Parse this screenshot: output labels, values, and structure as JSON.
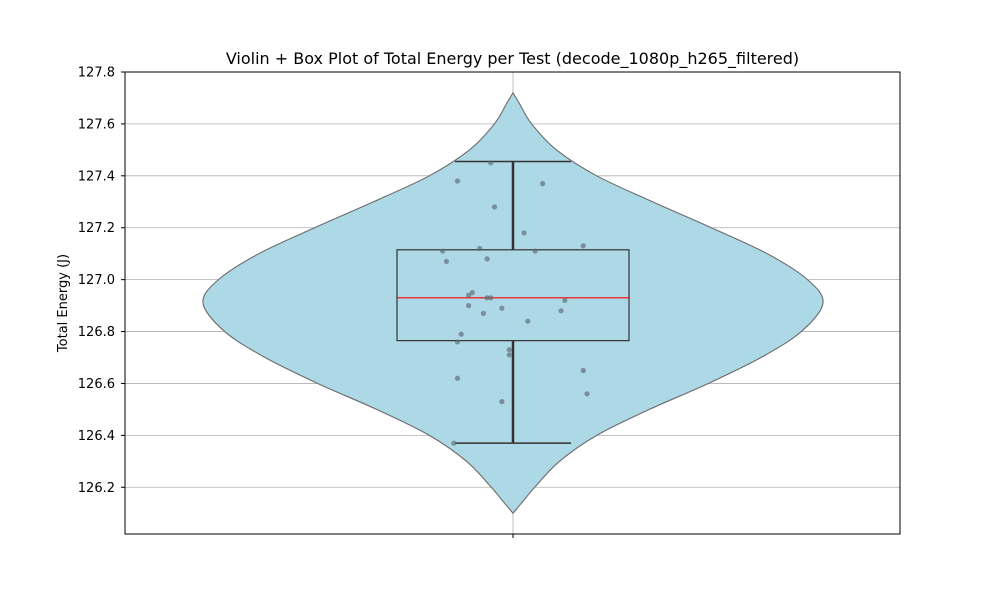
{
  "chart_data": {
    "type": "violin",
    "title": "Violin + Box Plot of Total Energy per Test (decode_1080p_h265_filtered)",
    "xlabel": "",
    "ylabel": "Total Energy (J)",
    "ylim": [
      126.02,
      127.8
    ],
    "yticks": [
      "126.2",
      "126.4",
      "126.6",
      "126.8",
      "127.0",
      "127.2",
      "127.4",
      "127.6",
      "127.8"
    ],
    "grid": true,
    "colors": {
      "violin_fill": "#add8e6",
      "violin_edge": "#6b6b6b",
      "box_edge": "#333333",
      "median": "#ff0000",
      "points": "#5a6a72",
      "grid": "#b0b0b0"
    },
    "violin": {
      "y_min": 126.1,
      "y_max": 127.72,
      "density_peak_y": 126.91,
      "profile": [
        [
          126.1,
          0.0
        ],
        [
          126.15,
          0.035
        ],
        [
          126.2,
          0.07
        ],
        [
          126.3,
          0.15
        ],
        [
          126.4,
          0.27
        ],
        [
          126.5,
          0.44
        ],
        [
          126.6,
          0.63
        ],
        [
          126.7,
          0.8
        ],
        [
          126.8,
          0.93
        ],
        [
          126.91,
          1.0
        ],
        [
          127.0,
          0.95
        ],
        [
          127.1,
          0.82
        ],
        [
          127.2,
          0.64
        ],
        [
          127.3,
          0.45
        ],
        [
          127.4,
          0.27
        ],
        [
          127.5,
          0.14
        ],
        [
          127.6,
          0.06
        ],
        [
          127.68,
          0.02
        ],
        [
          127.72,
          0.0
        ]
      ]
    },
    "box": {
      "whisker_low": 126.37,
      "q1": 126.765,
      "median": 126.93,
      "q3": 127.115,
      "whisker_high": 127.455
    },
    "points": [
      [
        -0.16,
        126.37
      ],
      [
        -0.15,
        126.62
      ],
      [
        -0.15,
        126.76
      ],
      [
        -0.14,
        126.79
      ],
      [
        -0.18,
        127.07
      ],
      [
        -0.19,
        127.11
      ],
      [
        -0.15,
        127.38
      ],
      [
        -0.12,
        126.9
      ],
      [
        -0.12,
        126.94
      ],
      [
        -0.11,
        126.95
      ],
      [
        -0.09,
        127.12
      ],
      [
        -0.08,
        126.87
      ],
      [
        -0.07,
        126.93
      ],
      [
        -0.07,
        127.08
      ],
      [
        -0.06,
        126.93
      ],
      [
        -0.06,
        127.45
      ],
      [
        -0.05,
        127.28
      ],
      [
        -0.03,
        126.89
      ],
      [
        -0.03,
        126.53
      ],
      [
        -0.01,
        126.73
      ],
      [
        -0.01,
        126.71
      ],
      [
        0.03,
        127.18
      ],
      [
        0.04,
        126.84
      ],
      [
        0.06,
        127.11
      ],
      [
        0.08,
        127.37
      ],
      [
        0.13,
        126.88
      ],
      [
        0.14,
        126.92
      ],
      [
        0.19,
        127.13
      ],
      [
        0.19,
        126.65
      ],
      [
        0.2,
        126.56
      ]
    ]
  }
}
